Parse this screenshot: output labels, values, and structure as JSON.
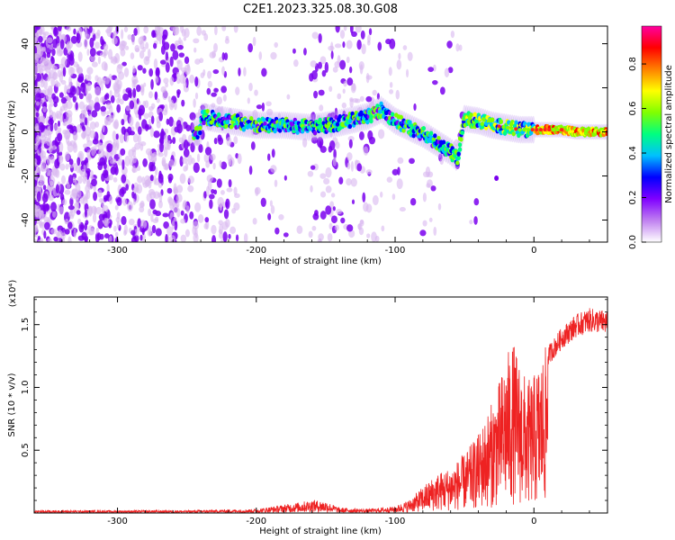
{
  "title": "C2E1.2023.325.08.30.G08",
  "colors": {
    "snr_line": "#ee2222",
    "spectrogram_low": "#d8b8f0",
    "spectrogram_mid": "#7a00ee",
    "colormap": [
      "#ffffff",
      "#c080f0",
      "#8000ff",
      "#0000ff",
      "#00c0ff",
      "#00ff80",
      "#80ff00",
      "#ffff00",
      "#ff8000",
      "#ff0000",
      "#ff00a0"
    ]
  },
  "chart_data": [
    {
      "type": "heatmap",
      "title": "C2E1.2023.325.08.30.G08",
      "xlabel": "Height of straight line (km)",
      "ylabel": "Frequency (Hz)",
      "xlim": [
        -360,
        53
      ],
      "ylim": [
        -50,
        48
      ],
      "xticks": [
        -300,
        -200,
        -100,
        0
      ],
      "xtick_labels": [
        "-300",
        "-200",
        "-100",
        "0"
      ],
      "yticks": [
        -40,
        -20,
        0,
        20,
        40
      ],
      "ytick_labels": [
        "-40",
        "-20",
        "0",
        "20",
        "40"
      ],
      "colorbar": {
        "label": "Normalized spectral amplitude",
        "range": [
          0,
          0.97
        ],
        "ticks": [
          0.0,
          0.2,
          0.4,
          0.6,
          0.8
        ],
        "tick_labels": [
          "0.0",
          "0.2",
          "0.4",
          "0.6",
          "0.8"
        ]
      },
      "ridge": {
        "description_values": [
          [
            -240,
            7
          ],
          [
            -220,
            5
          ],
          [
            -200,
            3
          ],
          [
            -180,
            3
          ],
          [
            -160,
            2
          ],
          [
            -140,
            4
          ],
          [
            -120,
            7
          ],
          [
            -110,
            10
          ],
          [
            -100,
            5
          ],
          [
            -90,
            2
          ],
          [
            -80,
            -1
          ],
          [
            -70,
            -5
          ],
          [
            -60,
            -9
          ],
          [
            -55,
            -12
          ],
          [
            -50,
            6
          ],
          [
            -40,
            5
          ],
          [
            -30,
            3
          ],
          [
            -20,
            2
          ],
          [
            -10,
            1
          ],
          [
            0,
            1
          ],
          [
            10,
            1
          ],
          [
            20,
            1
          ],
          [
            30,
            0
          ],
          [
            40,
            0
          ],
          [
            50,
            0
          ]
        ]
      }
    },
    {
      "type": "line",
      "xlabel": "Height of straight line (km)",
      "ylabel": "SNR (10 * v/v)",
      "y_scale_note": "(x10⁴)",
      "xlim": [
        -360,
        53
      ],
      "ylim": [
        0,
        1.72
      ],
      "xticks": [
        -300,
        -200,
        -100,
        0
      ],
      "xtick_labels": [
        "-300",
        "-200",
        "-100",
        "0"
      ],
      "yticks": [
        0.5,
        1.0,
        1.5
      ],
      "ytick_labels": [
        "0.5",
        "1.0",
        "1.5"
      ],
      "series": [
        {
          "envelope_x": [
            -360,
            -300,
            -250,
            -200,
            -170,
            -160,
            -150,
            -140,
            -120,
            -100,
            -90,
            -80,
            -70,
            -60,
            -50,
            -40,
            -30,
            -25,
            -20,
            -15,
            -10,
            -5,
            0,
            10,
            20,
            30,
            40,
            53
          ],
          "envelope_y": [
            0.02,
            0.02,
            0.02,
            0.03,
            0.08,
            0.1,
            0.09,
            0.04,
            0.03,
            0.05,
            0.1,
            0.2,
            0.3,
            0.35,
            0.45,
            0.6,
            0.85,
            1.0,
            1.2,
            1.3,
            1.15,
            1.0,
            1.05,
            1.3,
            1.45,
            1.55,
            1.6,
            1.58
          ]
        }
      ]
    }
  ]
}
